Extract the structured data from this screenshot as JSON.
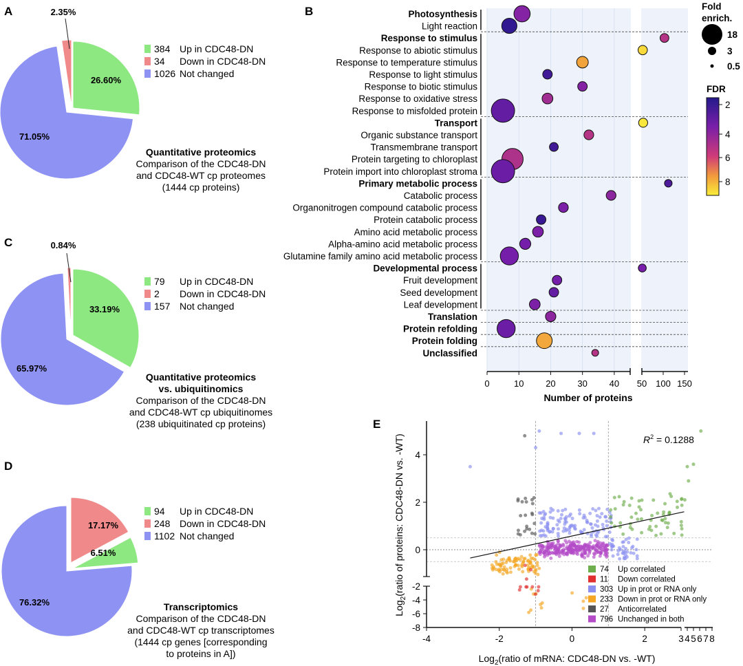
{
  "colors": {
    "up": "#8ee882",
    "down": "#f08a8a",
    "unchanged": "#8e92f2",
    "e_up_corr": "#6fae4c",
    "e_down_corr": "#e03030",
    "e_up_only": "#8a8ff0",
    "e_down_only": "#f5a623",
    "e_anti": "#555555",
    "e_both": "#b44bc7",
    "plot_bg": "#eef3fb"
  },
  "panels": {
    "A": {
      "letter": "A",
      "legend": [
        {
          "count": "384",
          "label": "Up in CDC48-DN"
        },
        {
          "count": "34",
          "label": "Down in CDC48-DN"
        },
        {
          "count": "1026",
          "label": "Not changed"
        }
      ],
      "slice_labels": [
        "26.60%",
        "2.35%",
        "71.05%"
      ],
      "caption": {
        "bold": [
          "Quantitative proteomics"
        ],
        "lines": [
          "Comparison of the CDC48-DN",
          "and CDC48-WT cp proteomes",
          "(1444 cp proteins)"
        ]
      }
    },
    "C": {
      "letter": "C",
      "legend": [
        {
          "count": "79",
          "label": "Up in CDC48-DN"
        },
        {
          "count": "2",
          "label": "Down in CDC48-DN"
        },
        {
          "count": "157",
          "label": "Not changed"
        }
      ],
      "slice_labels": [
        "33.19%",
        "0.84%",
        "65.97%"
      ],
      "caption": {
        "bold": [
          "Quantitative proteomics",
          "vs. ubiquitinomics"
        ],
        "lines": [
          "Comparison of the CDC48-DN",
          "and CDC48-WT cp ubiquitinomes",
          "(238 ubiquitinated cp proteins)"
        ]
      }
    },
    "D": {
      "letter": "D",
      "legend": [
        {
          "count": "94",
          "label": "Up in CDC48-DN"
        },
        {
          "count": "248",
          "label": "Down in CDC48-DN"
        },
        {
          "count": "1102",
          "label": "Not changed"
        }
      ],
      "slice_labels": [
        "6.51%",
        "17.17%",
        "76.32%"
      ],
      "caption": {
        "bold": [
          "Transcriptomics"
        ],
        "lines": [
          "Comparison of the CDC48-DN",
          "and CDC48-WT cp transcriptomes",
          "(1444 cp genes [corresponding",
          "to proteins in A])"
        ]
      }
    },
    "B": {
      "letter": "B",
      "xlabel": "Number of proteins",
      "size_legend": {
        "title": [
          "Fold",
          "enrich."
        ],
        "values": [
          "18",
          "3",
          "0.5"
        ]
      },
      "color_legend": {
        "title": "FDR",
        "ticks": [
          "2",
          "4",
          "6",
          "8"
        ]
      }
    },
    "E": {
      "letter": "E",
      "r2_label": "R",
      "r2_sup": "2",
      "r2_value": " = 0.1288",
      "xlabel": {
        "pre": "Log",
        "sub": "2",
        "post": "(ratio of mRNA: CDC48-DN vs. -WT)"
      },
      "ylabel": {
        "pre": "Log",
        "sub": "2",
        "post": "(ratio of proteins: CDC48-DN vs. -WT)"
      },
      "legend": [
        {
          "count": "74",
          "label": "Up correlated"
        },
        {
          "count": "11",
          "label": "Down correlated"
        },
        {
          "count": "303",
          "label": "Up in prot or RNA only"
        },
        {
          "count": "233",
          "label": "Down in prot or RNA only"
        },
        {
          "count": "27",
          "label": "Anticorrelated"
        },
        {
          "count": "796",
          "label": "Unchanged in both"
        }
      ]
    }
  },
  "chart_data": [
    {
      "panel": "A",
      "type": "pie",
      "title": "Quantitative proteomics",
      "categories": [
        "Up in CDC48-DN",
        "Down in CDC48-DN",
        "Not changed"
      ],
      "values": [
        384,
        34,
        1026
      ],
      "percentages": [
        26.6,
        2.35,
        71.05
      ]
    },
    {
      "panel": "C",
      "type": "pie",
      "title": "Quantitative proteomics vs. ubiquitinomics",
      "categories": [
        "Up in CDC48-DN",
        "Down in CDC48-DN",
        "Not changed"
      ],
      "values": [
        79,
        2,
        157
      ],
      "percentages": [
        33.19,
        0.84,
        65.97
      ]
    },
    {
      "panel": "D",
      "type": "pie",
      "title": "Transcriptomics",
      "categories": [
        "Up in CDC48-DN",
        "Down in CDC48-DN",
        "Not changed"
      ],
      "values": [
        94,
        248,
        1102
      ],
      "percentages": [
        6.51,
        17.17,
        76.32
      ]
    },
    {
      "panel": "B",
      "type": "scatter",
      "xlabel": "Number of proteins",
      "xticks": [
        "0",
        "10",
        "20",
        "30",
        "40",
        "50",
        "100",
        "150"
      ],
      "x_axis_break": [
        45,
        50
      ],
      "xlim": [
        0,
        150
      ],
      "size_label": "Fold enrich.",
      "color_label": "FDR",
      "fdr_range": [
        1.5,
        9
      ],
      "rows": [
        {
          "label": "Photosynthesis",
          "bold": true,
          "n": 11,
          "fe": 6,
          "fdr": 3.8,
          "group_start": true
        },
        {
          "label": "Light reaction",
          "bold": false,
          "n": 7,
          "fe": 5,
          "fdr": 1.8
        },
        {
          "label": "Response to stimulus",
          "bold": true,
          "n": 103,
          "fe": 0.9,
          "fdr": 5.0,
          "group_start": true
        },
        {
          "label": "Response to abiotic stimulus",
          "bold": false,
          "n": 52,
          "fe": 1.1,
          "fdr": 8.5
        },
        {
          "label": "Response to temperature stimulus",
          "bold": false,
          "n": 30,
          "fe": 2.3,
          "fdr": 7.3
        },
        {
          "label": "Response to light stimulus",
          "bold": false,
          "n": 19,
          "fe": 1.2,
          "fdr": 2.2
        },
        {
          "label": "Response to biotic stimulus",
          "bold": false,
          "n": 30,
          "fe": 1.2,
          "fdr": 3.8
        },
        {
          "label": "Response to oxidative stress",
          "bold": false,
          "n": 19,
          "fe": 1.8,
          "fdr": 4.5
        },
        {
          "label": "Response to misfolded protein",
          "bold": false,
          "n": 5,
          "fe": 15,
          "fdr": 3.0
        },
        {
          "label": "Transport",
          "bold": true,
          "n": 53,
          "fe": 1.0,
          "fdr": 8.8,
          "group_start": true
        },
        {
          "label": "Organic substance transport",
          "bold": false,
          "n": 32,
          "fe": 1.3,
          "fdr": 5.0
        },
        {
          "label": "Transmembrane transport",
          "bold": false,
          "n": 21,
          "fe": 0.9,
          "fdr": 2.2
        },
        {
          "label": "Protein targeting to chloroplast",
          "bold": false,
          "n": 8,
          "fe": 12,
          "fdr": 4.8
        },
        {
          "label": "Protein import into chloroplast stroma",
          "bold": false,
          "n": 5,
          "fe": 15,
          "fdr": 3.2
        },
        {
          "label": "Primary metabolic process",
          "bold": true,
          "n": 112,
          "fe": 0.5,
          "fdr": 2.5,
          "group_start": true
        },
        {
          "label": "Catabolic process",
          "bold": false,
          "n": 39,
          "fe": 1.3,
          "fdr": 4.0
        },
        {
          "label": "Organonitrogen compound catabolic process",
          "bold": false,
          "n": 24,
          "fe": 1.3,
          "fdr": 3.6
        },
        {
          "label": "Protein catabolic process",
          "bold": false,
          "n": 17,
          "fe": 1.2,
          "fdr": 2.0
        },
        {
          "label": "Amino acid metabolic process",
          "bold": false,
          "n": 16,
          "fe": 1.8,
          "fdr": 3.6
        },
        {
          "label": "Alpha-amino acid metabolic process",
          "bold": false,
          "n": 12,
          "fe": 2.0,
          "fdr": 3.4
        },
        {
          "label": "Glutamine family amino acid metabolic process",
          "bold": false,
          "n": 7,
          "fe": 8,
          "fdr": 3.4
        },
        {
          "label": "Developmental process",
          "bold": true,
          "n": 51,
          "fe": 0.6,
          "fdr": 3.5,
          "group_start": true
        },
        {
          "label": "Fruit development",
          "bold": false,
          "n": 22,
          "fe": 1.2,
          "fdr": 3.4
        },
        {
          "label": "Seed development",
          "bold": false,
          "n": 21,
          "fe": 1.2,
          "fdr": 3.0
        },
        {
          "label": "Leaf development",
          "bold": false,
          "n": 15,
          "fe": 1.8,
          "fdr": 3.6
        },
        {
          "label": "Translation",
          "bold": true,
          "n": 20,
          "fe": 1.6,
          "fdr": 4.0,
          "group_start": true
        },
        {
          "label": "Protein refolding",
          "bold": true,
          "n": 6,
          "fe": 8,
          "fdr": 3.2,
          "group_start": true
        },
        {
          "label": "Protein folding",
          "bold": true,
          "n": 18,
          "fe": 5.5,
          "fdr": 7.4,
          "group_start": true
        },
        {
          "label": "Unclassified",
          "bold": true,
          "n": 34,
          "fe": 0.3,
          "fdr": 5.0,
          "group_start": true
        }
      ]
    },
    {
      "panel": "E",
      "type": "scatter",
      "xlabel": "Log2(ratio of mRNA: CDC48-DN vs. -WT)",
      "ylabel": "Log2(ratio of proteins: CDC48-DN vs. -WT)",
      "xticks": [
        "-4",
        "-2",
        "0",
        "2",
        "3",
        "4",
        "5",
        "6",
        "7",
        "8"
      ],
      "yticks_upper": [
        "0",
        "2",
        "4"
      ],
      "yticks_lower": [
        "-2",
        "-4",
        "-6",
        "-8"
      ],
      "r2": 0.1288,
      "regression": {
        "from": [
          -2.8,
          -0.35
        ],
        "to": [
          3.5,
          1.6
        ]
      },
      "groups": [
        {
          "name": "Up correlated",
          "count": 74
        },
        {
          "name": "Down correlated",
          "count": 11
        },
        {
          "name": "Up in prot or RNA only",
          "count": 303
        },
        {
          "name": "Down in prot or RNA only",
          "count": 233
        },
        {
          "name": "Anticorrelated",
          "count": 27
        },
        {
          "name": "Unchanged in both",
          "count": 796
        }
      ]
    }
  ]
}
